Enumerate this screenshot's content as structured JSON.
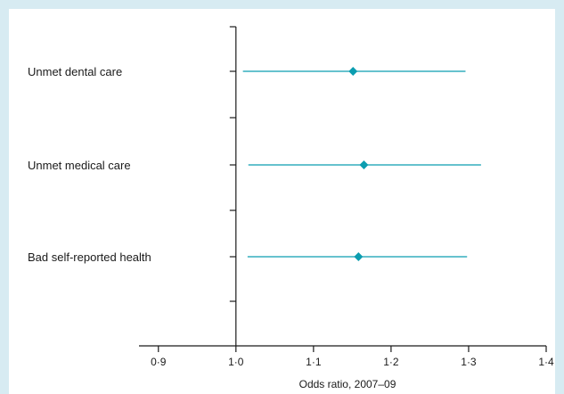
{
  "chart_data": {
    "type": "forest",
    "title": "",
    "xlabel": "Odds ratio, 2007–09",
    "ylabel": "",
    "xlim": [
      0.875,
      1.4
    ],
    "x_ticks": [
      0.9,
      1.0,
      1.1,
      1.2,
      1.3,
      1.4
    ],
    "x_tick_labels": [
      "0·9",
      "1·0",
      "1·1",
      "1·2",
      "1·3",
      "1·4"
    ],
    "reference_line": 1.0,
    "grid": false,
    "categories": [
      "Unmet dental care",
      "Unmet medical care",
      "Bad self-reported health"
    ],
    "estimates": [
      1.151,
      1.165,
      1.158
    ],
    "ci_lower": [
      1.009,
      1.016,
      1.015
    ],
    "ci_upper": [
      1.296,
      1.316,
      1.298
    ],
    "colors": {
      "series": "#0b9db0",
      "axis": "#1a1a1a",
      "border": "#d7ebf2"
    }
  }
}
